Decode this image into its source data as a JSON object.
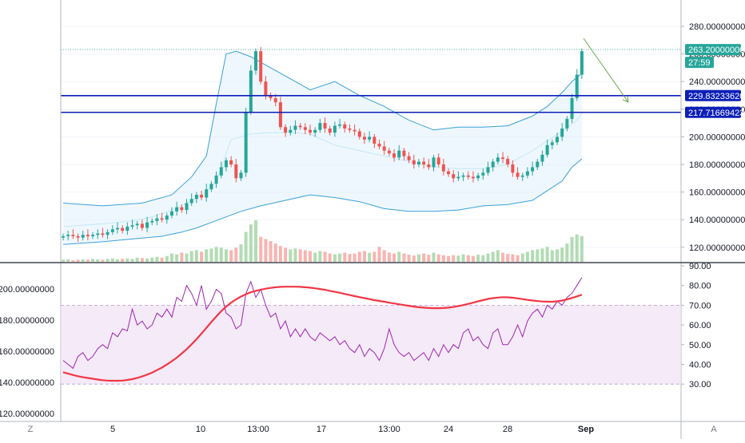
{
  "chart_data": [
    {
      "type": "candlestick",
      "panel": "price",
      "y_axis_side": "right",
      "ylim": [
        112,
        298
      ],
      "y_ticks": [
        "280.00000000",
        "260.00000000",
        "240.00000000",
        "220.00000000",
        "200.00000000",
        "180.00000000",
        "160.00000000",
        "140.00000000",
        "120.00000000"
      ],
      "x_ticks": [
        "5",
        "10",
        "13:00",
        "17",
        "13:00",
        "24",
        "28",
        "Sep"
      ],
      "price_labels": [
        {
          "text": "263.20000000",
          "value": 263.2,
          "color": "#26a69a"
        },
        {
          "text": "27:59",
          "color": "#26a69a"
        },
        {
          "text": "229.83233620",
          "value": 229.8323362,
          "color": "#0d1fb8"
        },
        {
          "text": "217.71669423",
          "value": 217.71669423,
          "color": "#0d1fb8"
        }
      ],
      "horizontal_lines": [
        229.8323362,
        217.71669423
      ],
      "last_price": 263.2,
      "series": [
        {
          "name": "Bollinger upper",
          "type": "line",
          "points": [
            [
              0,
              152
            ],
            [
              8,
              150
            ],
            [
              16,
              152
            ],
            [
              22,
              158
            ],
            [
              26,
              171
            ],
            [
              29,
              186
            ],
            [
              31,
              224
            ],
            [
              33,
              260
            ],
            [
              35,
              262
            ],
            [
              38,
              258
            ],
            [
              42,
              250
            ],
            [
              47,
              240
            ],
            [
              50,
              234
            ],
            [
              55,
              240
            ],
            [
              60,
              230
            ],
            [
              65,
              222
            ],
            [
              70,
              212
            ],
            [
              75,
              205
            ],
            [
              80,
              207
            ],
            [
              85,
              207
            ],
            [
              90,
              208
            ],
            [
              95,
              215
            ],
            [
              98,
              222
            ],
            [
              101,
              232
            ],
            [
              103,
              240
            ],
            [
              105,
              246
            ]
          ]
        },
        {
          "name": "Bollinger basis",
          "type": "line",
          "points": [
            [
              0,
              135
            ],
            [
              8,
              137
            ],
            [
              14,
              139
            ],
            [
              18,
              142
            ],
            [
              22,
              147
            ],
            [
              26,
              154
            ],
            [
              29,
              160
            ],
            [
              31,
              168
            ],
            [
              34,
              198
            ],
            [
              38,
              202
            ],
            [
              42,
              203
            ],
            [
              47,
              203
            ],
            [
              50,
              202
            ],
            [
              55,
              194
            ],
            [
              60,
              190
            ],
            [
              65,
              186
            ],
            [
              70,
              182
            ],
            [
              75,
              178
            ],
            [
              80,
              177
            ],
            [
              85,
              177
            ],
            [
              90,
              180
            ],
            [
              95,
              190
            ],
            [
              98,
              197
            ],
            [
              101,
              204
            ],
            [
              104,
              212
            ],
            [
              105,
              217
            ]
          ]
        },
        {
          "name": "Bollinger lower",
          "type": "line",
          "points": [
            [
              0,
              122
            ],
            [
              8,
              124
            ],
            [
              14,
              126
            ],
            [
              20,
              128
            ],
            [
              24,
              131
            ],
            [
              27,
              134
            ],
            [
              30,
              138
            ],
            [
              33,
              142
            ],
            [
              36,
              146
            ],
            [
              40,
              150
            ],
            [
              45,
              154
            ],
            [
              50,
              158
            ],
            [
              55,
              156
            ],
            [
              60,
              153
            ],
            [
              65,
              148
            ],
            [
              70,
              146
            ],
            [
              75,
              146
            ],
            [
              80,
              147
            ],
            [
              85,
              150
            ],
            [
              90,
              151
            ],
            [
              95,
              154
            ],
            [
              98,
              161
            ],
            [
              101,
              168
            ],
            [
              103,
              178
            ],
            [
              105,
              184
            ]
          ]
        }
      ],
      "candles": {
        "count": 106,
        "close": [
          128,
          129,
          128,
          127,
          129,
          128,
          129,
          130,
          129,
          131,
          133,
          134,
          132,
          135,
          136,
          137,
          134,
          138,
          139,
          141,
          140,
          143,
          146,
          149,
          147,
          152,
          155,
          158,
          156,
          162,
          166,
          172,
          178,
          183,
          180,
          170,
          174,
          218,
          248,
          262,
          240,
          230,
          228,
          225,
          207,
          203,
          205,
          208,
          207,
          205,
          203,
          205,
          210,
          206,
          203,
          208,
          209,
          206,
          205,
          204,
          200,
          198,
          200,
          195,
          193,
          190,
          188,
          185,
          190,
          186,
          183,
          180,
          182,
          180,
          178,
          185,
          180,
          175,
          173,
          170,
          171,
          172,
          171,
          170,
          172,
          174,
          178,
          182,
          185,
          184,
          180,
          174,
          171,
          172,
          175,
          178,
          182,
          187,
          194,
          196,
          200,
          206,
          213,
          228,
          245,
          262
        ],
        "up_color": "#26a69a",
        "down_color": "#ef5350"
      },
      "volume": {
        "up_color": "#a5d6a7",
        "down_color": "#f8a7a3",
        "relative_heights": [
          0.05,
          0.06,
          0.04,
          0.05,
          0.06,
          0.05,
          0.07,
          0.06,
          0.05,
          0.07,
          0.08,
          0.06,
          0.07,
          0.08,
          0.07,
          0.1,
          0.09,
          0.08,
          0.1,
          0.12,
          0.1,
          0.14,
          0.2,
          0.18,
          0.22,
          0.2,
          0.26,
          0.28,
          0.24,
          0.3,
          0.32,
          0.36,
          0.34,
          0.3,
          0.28,
          0.34,
          0.42,
          0.72,
          0.9,
          1.0,
          0.6,
          0.55,
          0.5,
          0.44,
          0.38,
          0.34,
          0.3,
          0.32,
          0.3,
          0.28,
          0.26,
          0.22,
          0.26,
          0.24,
          0.2,
          0.18,
          0.2,
          0.22,
          0.19,
          0.2,
          0.24,
          0.26,
          0.22,
          0.24,
          0.36,
          0.28,
          0.22,
          0.2,
          0.24,
          0.2,
          0.17,
          0.15,
          0.18,
          0.2,
          0.17,
          0.22,
          0.18,
          0.16,
          0.14,
          0.16,
          0.15,
          0.18,
          0.16,
          0.14,
          0.17,
          0.16,
          0.2,
          0.24,
          0.28,
          0.22,
          0.19,
          0.18,
          0.16,
          0.2,
          0.24,
          0.28,
          0.3,
          0.32,
          0.36,
          0.28,
          0.3,
          0.34,
          0.44,
          0.6,
          0.66,
          0.62
        ]
      }
    },
    {
      "type": "line",
      "panel": "RSI",
      "left_axis_ticks": [
        "200.00000000",
        "180.00000000",
        "160.00000000",
        "140.00000000",
        "120.00000000"
      ],
      "right_axis_ticks": [
        "90.00",
        "80.00",
        "70.00",
        "60.00",
        "50.00",
        "40.00",
        "30.00"
      ],
      "ylim": [
        28,
        91
      ],
      "band": [
        30,
        70
      ],
      "series": [
        {
          "name": "RSI",
          "color": "#9c27b0",
          "values": [
            42,
            40,
            38,
            44,
            46,
            42,
            44,
            48,
            50,
            48,
            56,
            54,
            58,
            57,
            68,
            60,
            62,
            58,
            60,
            66,
            64,
            68,
            64,
            74,
            72,
            80,
            76,
            70,
            80,
            68,
            72,
            78,
            76,
            66,
            64,
            58,
            60,
            76,
            82,
            74,
            78,
            70,
            64,
            66,
            58,
            62,
            54,
            58,
            54,
            58,
            54,
            52,
            56,
            54,
            52,
            54,
            50,
            52,
            48,
            46,
            50,
            44,
            48,
            46,
            42,
            48,
            58,
            50,
            46,
            44,
            46,
            42,
            44,
            46,
            42,
            48,
            44,
            50,
            46,
            50,
            48,
            56,
            58,
            52,
            54,
            50,
            48,
            56,
            58,
            50,
            50,
            54,
            60,
            54,
            62,
            66,
            68,
            64,
            70,
            68,
            72,
            70,
            74,
            76,
            80,
            84
          ]
        },
        {
          "name": "RSI-based MA",
          "color": "#f23645",
          "values": [
            36,
            35.3,
            34.6,
            34,
            33.5,
            33.1,
            32.7,
            32.3,
            32,
            31.8,
            31.7,
            31.7,
            31.8,
            32.1,
            32.5,
            33.1,
            33.9,
            34.8,
            35.8,
            37.1,
            38.4,
            39.9,
            41.6,
            43.4,
            45.5,
            47.7,
            50.2,
            52.8,
            55.6,
            58.5,
            61.5,
            64.3,
            67,
            69.3,
            71.3,
            73,
            74.4,
            75.6,
            76.6,
            77.3,
            77.9,
            78.4,
            78.8,
            79.1,
            79.3,
            79.4,
            79.4,
            79.4,
            79.3,
            79.1,
            78.9,
            78.6,
            78.2,
            77.8,
            77.3,
            76.8,
            76.3,
            75.7,
            75.2,
            74.6,
            74.1,
            73.6,
            73.1,
            72.6,
            72.2,
            71.8,
            71.3,
            70.9,
            70.5,
            70.1,
            69.7,
            69.3,
            69,
            68.8,
            68.6,
            68.5,
            68.5,
            68.6,
            68.8,
            69.1,
            69.6,
            70.1,
            70.7,
            71.3,
            72,
            72.6,
            73.2,
            73.6,
            73.9,
            74.1,
            74,
            73.8,
            73.5,
            73.1,
            72.7,
            72.4,
            72.1,
            71.9,
            71.8,
            71.8,
            72,
            72.4,
            73,
            73.7,
            74.5,
            75.3
          ]
        }
      ]
    }
  ],
  "ui": {
    "bottom_left_button": "Z",
    "bottom_right_button": "A"
  }
}
